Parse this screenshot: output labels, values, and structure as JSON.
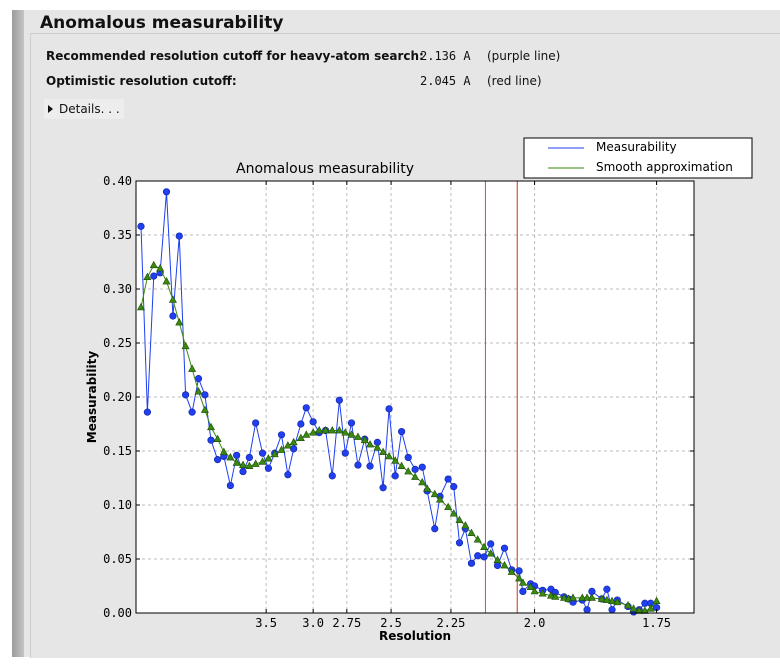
{
  "section_title": "Anomalous measurability",
  "summary": {
    "recommended_label": "Recommended resolution cutoff for heavy-atom search:",
    "recommended_value": "2.136 A",
    "recommended_note": "(purple line)",
    "optimistic_label": "Optimistic resolution cutoff:",
    "optimistic_value": "2.045 A",
    "optimistic_note": "(red line)"
  },
  "details": {
    "label": "Details. . .",
    "icon": "triangle-right-icon",
    "expanded": false
  },
  "chart_data": {
    "type": "line",
    "title": "Anomalous measurability",
    "xlabel": "Resolution",
    "ylabel": "Measurability",
    "x_scale": "1/d^2",
    "x_ticks": [
      3.5,
      3.0,
      2.75,
      2.5,
      2.25,
      2.0,
      1.75
    ],
    "x_tick_labels": [
      "3.5",
      "3.0",
      "2.75",
      "2.5",
      "2.25",
      "2.0",
      "1.75"
    ],
    "ylim": [
      0,
      0.4
    ],
    "y_ticks": [
      0.0,
      0.05,
      0.1,
      0.15,
      0.2,
      0.25,
      0.3,
      0.35,
      0.4
    ],
    "y_tick_labels": [
      "0.00",
      "0.05",
      "0.10",
      "0.15",
      "0.20",
      "0.25",
      "0.30",
      "0.35",
      "0.40"
    ],
    "grid": true,
    "legend_position": "top-right (outside)",
    "x": [
      17.85,
      11.83,
      9.47,
      8.13,
      7.23,
      6.57,
      6.07,
      5.67,
      5.33,
      5.05,
      4.81,
      4.61,
      4.42,
      4.26,
      4.11,
      3.98,
      3.86,
      3.75,
      3.65,
      3.55,
      3.47,
      3.39,
      3.31,
      3.24,
      3.18,
      3.11,
      3.06,
      3.0,
      2.95,
      2.9,
      2.85,
      2.8,
      2.76,
      2.72,
      2.68,
      2.64,
      2.61,
      2.57,
      2.54,
      2.51,
      2.48,
      2.45,
      2.42,
      2.39,
      2.36,
      2.34,
      2.31,
      2.29,
      2.26,
      2.24,
      2.22,
      2.2,
      2.18,
      2.16,
      2.14,
      2.12,
      2.1,
      2.08,
      2.06,
      2.04,
      2.03,
      2.01,
      2.0,
      1.98,
      1.96,
      1.95,
      1.93,
      1.92,
      1.91,
      1.89,
      1.88,
      1.87,
      1.85,
      1.84,
      1.83,
      1.82,
      1.8,
      1.79,
      1.78,
      1.77,
      1.76,
      1.75
    ],
    "series": [
      {
        "name": "Measurability",
        "color": "#1f3ff0",
        "marker": "circle",
        "values": [
          0.358,
          0.186,
          0.312,
          0.315,
          0.39,
          0.275,
          0.349,
          0.202,
          0.186,
          0.217,
          0.202,
          0.16,
          0.142,
          0.145,
          0.118,
          0.146,
          0.131,
          0.144,
          0.176,
          0.148,
          0.134,
          0.148,
          0.165,
          0.128,
          0.152,
          0.175,
          0.19,
          0.177,
          0.167,
          0.169,
          0.127,
          0.197,
          0.148,
          0.176,
          0.137,
          0.161,
          0.136,
          0.158,
          0.116,
          0.189,
          0.127,
          0.168,
          0.144,
          0.133,
          0.135,
          0.113,
          0.078,
          0.108,
          0.124,
          0.117,
          0.065,
          0.078,
          0.046,
          0.053,
          0.052,
          0.064,
          0.044,
          0.06,
          0.04,
          0.039,
          0.02,
          0.027,
          0.025,
          0.021,
          0.022,
          0.019,
          0.015,
          0.013,
          0.01,
          0.012,
          0.003,
          0.02,
          0.013,
          0.022,
          0.003,
          0.012,
          0.006,
          0.001,
          0.003,
          0.009,
          0.009,
          0.005
        ]
      },
      {
        "name": "Smooth approximation",
        "color": "#3a8a10",
        "marker": "triangle",
        "values": [
          0.283,
          0.311,
          0.322,
          0.319,
          0.307,
          0.29,
          0.269,
          0.247,
          0.226,
          0.205,
          0.188,
          0.172,
          0.161,
          0.149,
          0.144,
          0.139,
          0.137,
          0.136,
          0.138,
          0.14,
          0.143,
          0.147,
          0.151,
          0.155,
          0.158,
          0.162,
          0.165,
          0.167,
          0.169,
          0.169,
          0.169,
          0.169,
          0.167,
          0.165,
          0.163,
          0.16,
          0.156,
          0.153,
          0.149,
          0.145,
          0.141,
          0.136,
          0.131,
          0.126,
          0.121,
          0.115,
          0.11,
          0.105,
          0.098,
          0.092,
          0.086,
          0.081,
          0.074,
          0.068,
          0.061,
          0.055,
          0.049,
          0.044,
          0.038,
          0.032,
          0.028,
          0.024,
          0.02,
          0.018,
          0.016,
          0.015,
          0.014,
          0.013,
          0.014,
          0.014,
          0.014,
          0.014,
          0.013,
          0.012,
          0.011,
          0.01,
          0.007,
          0.004,
          0.002,
          0.002,
          0.004,
          0.011
        ]
      }
    ],
    "vertical_lines": [
      {
        "x": 2.136,
        "color": "#cc33cc",
        "label": "purple line"
      },
      {
        "x": 2.045,
        "color": "#cc3311",
        "label": "red line"
      }
    ]
  }
}
